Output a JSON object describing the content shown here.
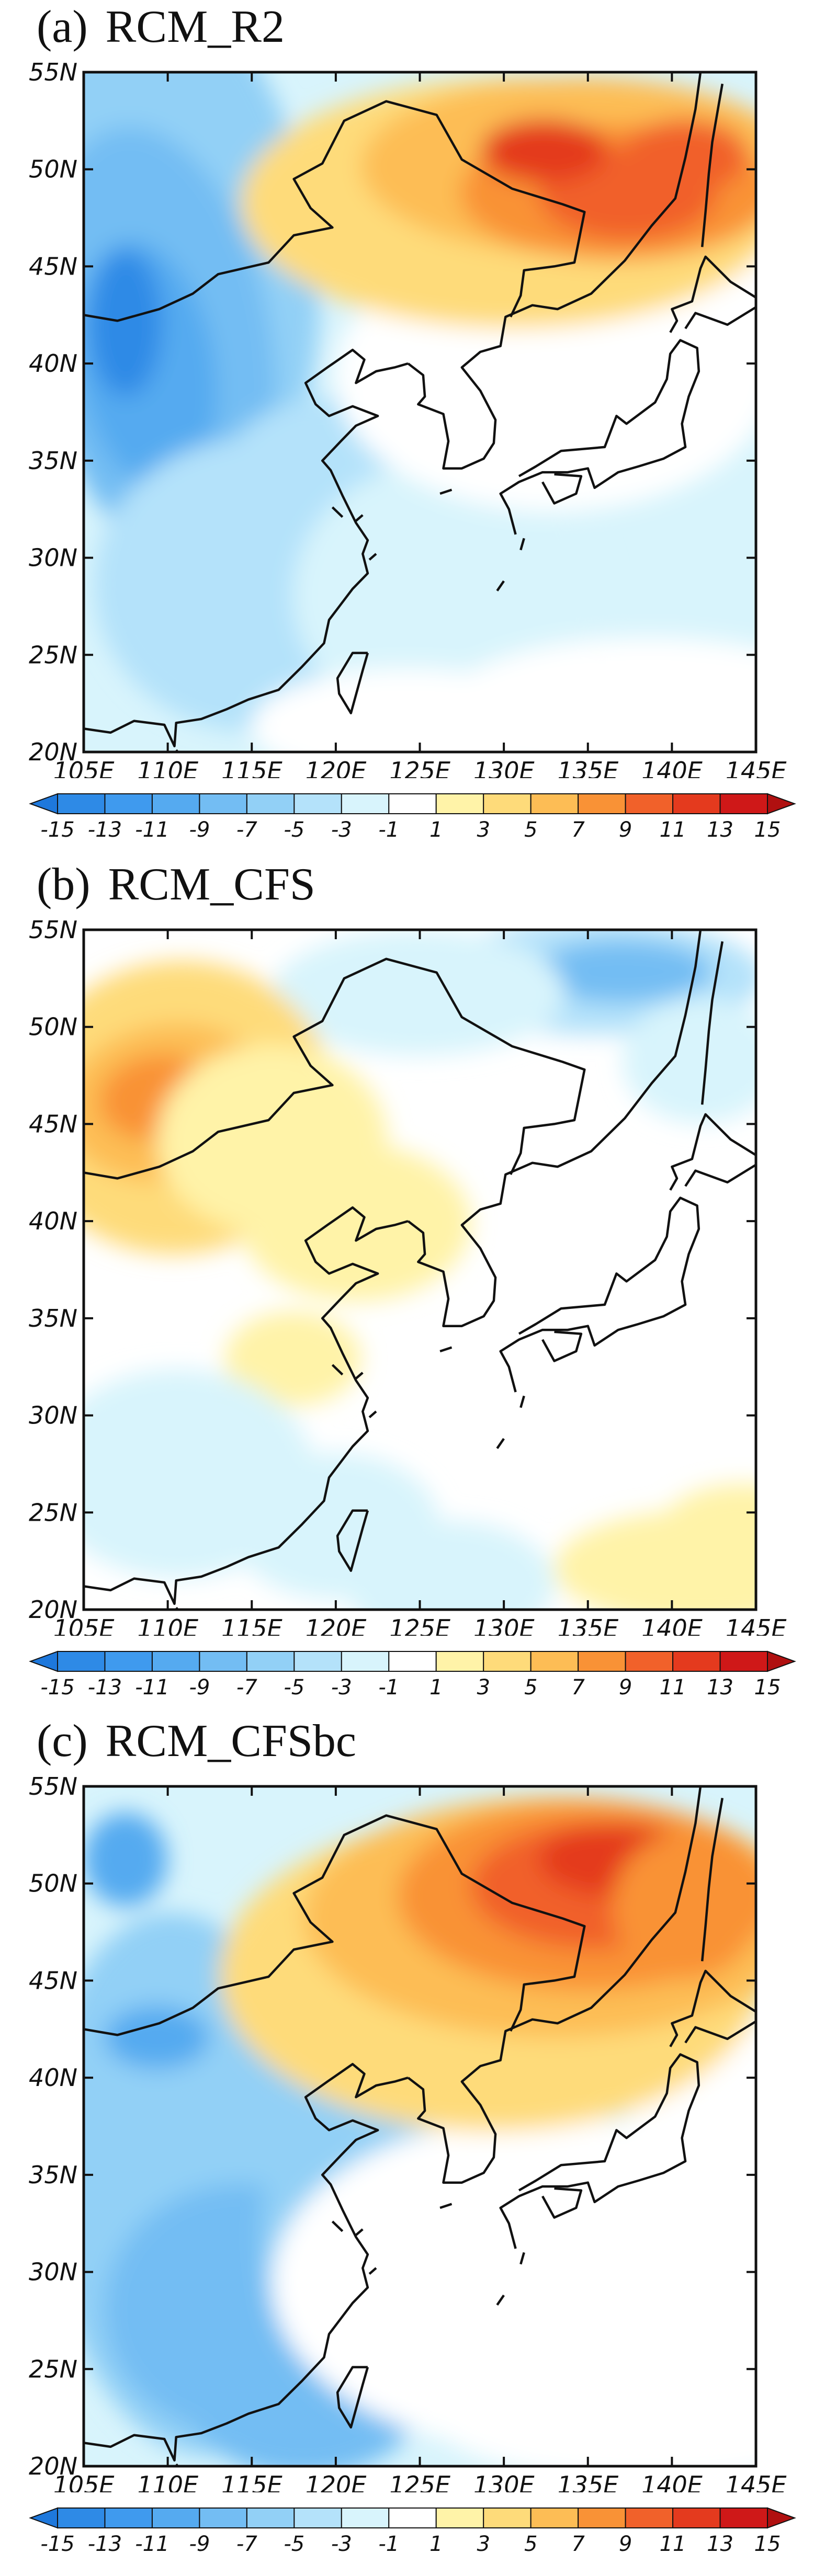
{
  "panels": [
    {
      "label": "(a)",
      "title": "RCM_R2"
    },
    {
      "label": "(b)",
      "title": "RCM_CFS"
    },
    {
      "label": "(c)",
      "title": "RCM_CFSbc"
    }
  ],
  "lat_ticks": [
    "55N",
    "50N",
    "45N",
    "40N",
    "35N",
    "30N",
    "25N",
    "20N"
  ],
  "lon_ticks": [
    "105E",
    "110E",
    "115E",
    "120E",
    "125E",
    "130E",
    "135E",
    "140E",
    "145E"
  ],
  "colorbar": {
    "labels": [
      "-15",
      "-13",
      "-11",
      "-9",
      "-7",
      "-5",
      "-3",
      "-1",
      "1",
      "3",
      "5",
      "7",
      "9",
      "11",
      "13",
      "15"
    ],
    "colors": [
      "#1e78dc",
      "#2e8ae6",
      "#3f9aee",
      "#55aaf0",
      "#73bdf3",
      "#92d0f6",
      "#b4e2fa",
      "#d8f4fc",
      "#ffffff",
      "#fff3a8",
      "#fedb7a",
      "#fdbd55",
      "#f99236",
      "#f1612a",
      "#e43a1e",
      "#cf1818",
      "#b01010"
    ]
  },
  "colors": {
    "land_outline": "#111111",
    "frame": "#111111"
  }
}
